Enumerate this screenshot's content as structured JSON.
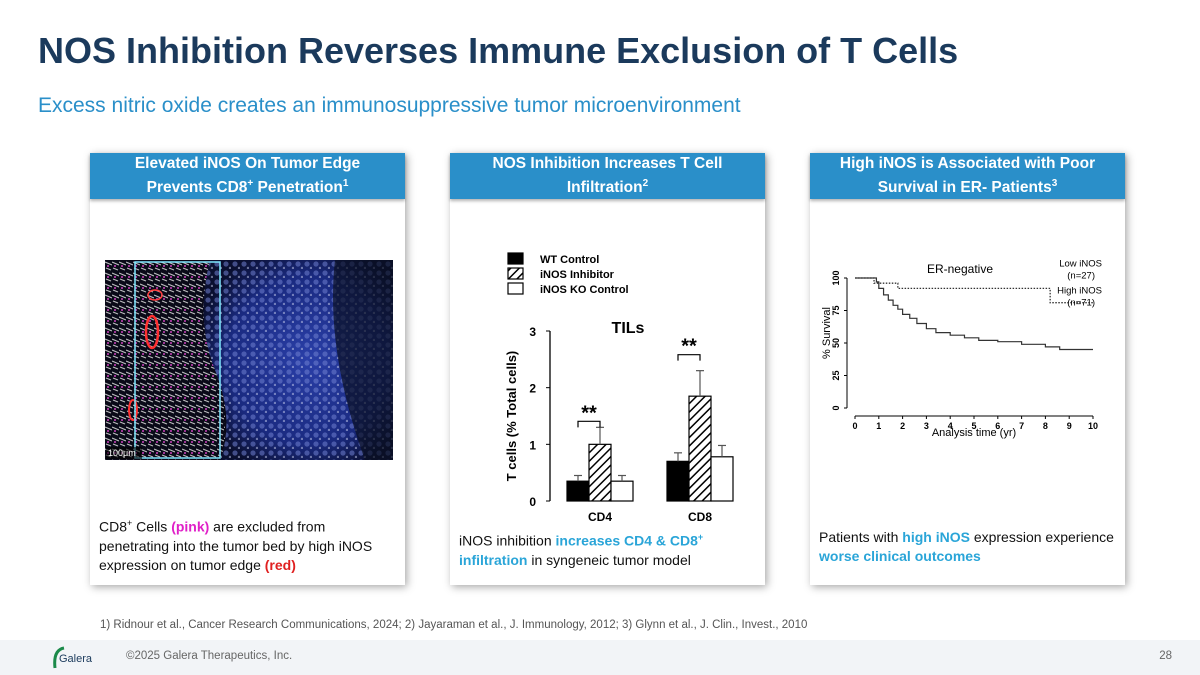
{
  "slide": {
    "title": "NOS Inhibition Reverses Immune Exclusion of T Cells",
    "subtitle": "Excess nitric oxide creates an immunosuppressive tumor microenvironment",
    "page_number": "28",
    "copyright": "©2025 Galera Therapeutics, Inc.",
    "footnote": "1) Ridnour et al., Cancer Research Communications, 2024; 2) Jayaraman et al., J. Immunology, 2012; 3) Glynn et al., J. Clin., Invest., 2010",
    "logo_text": "Galera"
  },
  "panel1": {
    "head_line1": "Elevated iNOS On Tumor Edge",
    "head_line2": "Prevents CD8",
    "head_sup_plus": "+",
    "head_line2b": " Penetration",
    "head_sup_ref": "1",
    "scale_label": "100μm",
    "caption": {
      "p1": "CD8",
      "sup": "+",
      "p2": " Cells ",
      "pink": "(pink)",
      "p3": " are excluded from penetrating into the tumor bed by high iNOS expression on tumor edge ",
      "red": "(red)"
    }
  },
  "panel2": {
    "head_line1": "NOS Inhibition Increases T Cell",
    "head_line2": "Infiltration",
    "head_sup_ref": "2",
    "caption": {
      "p1": "iNOS inhibition ",
      "blue1": "increases CD4 & CD8",
      "sup": "+",
      "blue2": "infiltration",
      "p2": " in syngeneic tumor model"
    }
  },
  "panel3": {
    "head_line1": "High iNOS is Associated with Poor",
    "head_line2": "Survival in ER- Patients",
    "head_sup_ref": "3",
    "caption": {
      "p1": "Patients with ",
      "blue1": "high iNOS",
      "p2": " expression experience ",
      "blue2": "worse clinical outcomes"
    }
  },
  "chart_data": [
    {
      "type": "bar",
      "title": "TILs",
      "ylabel": "T cells (% Total cells)",
      "ylim": [
        0,
        3
      ],
      "yticks": [
        "0",
        "1",
        "2",
        "3"
      ],
      "categories": [
        "CD4",
        "CD8"
      ],
      "series": [
        {
          "name": "WT Control",
          "values": [
            0.35,
            0.7
          ],
          "errors": [
            0.1,
            0.15
          ]
        },
        {
          "name": "iNOS Inhibitor",
          "values": [
            1.0,
            1.85
          ],
          "errors": [
            0.3,
            0.45
          ]
        },
        {
          "name": "iNOS KO Control",
          "values": [
            0.35,
            0.78
          ],
          "errors": [
            0.1,
            0.2
          ]
        }
      ],
      "annotations": [
        "**",
        "**"
      ]
    },
    {
      "type": "line",
      "title": "ER-negative",
      "xlabel": "Analysis time (yr)",
      "ylabel": "% Survival",
      "xlim": [
        0,
        10
      ],
      "ylim": [
        0,
        100
      ],
      "xticks": [
        "0",
        "1",
        "2",
        "3",
        "4",
        "5",
        "6",
        "7",
        "8",
        "9",
        "10"
      ],
      "yticks": [
        "0",
        "25",
        "50",
        "75",
        "100"
      ],
      "series": [
        {
          "name": "Low iNOS",
          "n_label": "(n=27)",
          "style": "dotted",
          "x": [
            0,
            0.8,
            0.8,
            1.8,
            1.8,
            8.2,
            8.2,
            10
          ],
          "y": [
            100,
            100,
            96,
            96,
            92,
            92,
            81,
            81
          ]
        },
        {
          "name": "High iNOS",
          "n_label": "(n=71)",
          "style": "solid",
          "x": [
            0,
            0.9,
            1.0,
            1.2,
            1.4,
            1.6,
            1.8,
            2.0,
            2.3,
            2.6,
            3.0,
            3.4,
            4.0,
            4.6,
            5.2,
            6.0,
            7.0,
            8.0,
            8.6,
            10
          ],
          "y": [
            100,
            97,
            92,
            87,
            83,
            79,
            76,
            72,
            69,
            65,
            61,
            58,
            56,
            54,
            52,
            51,
            49,
            47,
            45,
            45
          ]
        }
      ]
    }
  ],
  "colors": {
    "title": "#1b3a5c",
    "accent": "#2a8fc9",
    "pink": "#e020c8",
    "red": "#e02020"
  }
}
